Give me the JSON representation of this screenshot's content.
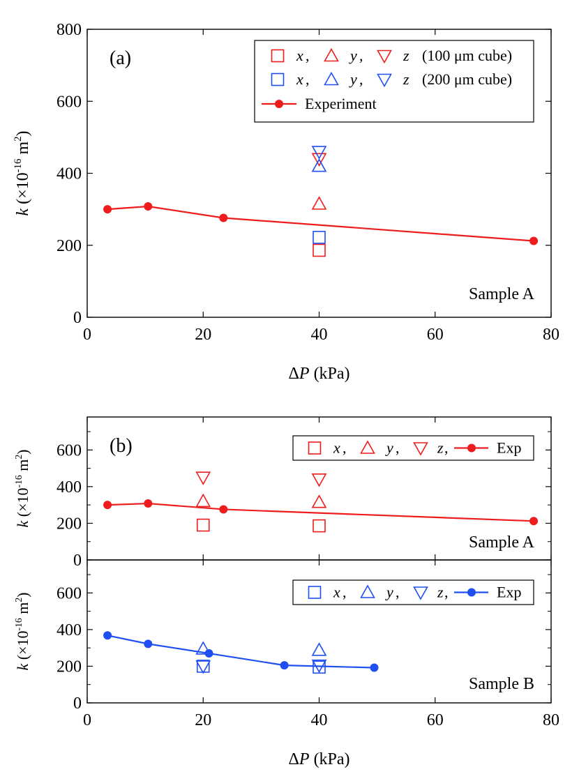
{
  "colors": {
    "red": "#ee1c1c",
    "blue": "#1f4ff0",
    "axis": "#000000"
  },
  "chart_data": [
    {
      "type": "scatter",
      "panel_label": "(a)",
      "sample_label": "Sample A",
      "xlabel": {
        "delta": "Δ",
        "var": "P",
        "unit": " (kPa)"
      },
      "ylabel": {
        "var": "k",
        "open": " (×10",
        "exp": "-16",
        "unit": " m",
        "sq": "2",
        "close": ")"
      },
      "xlim": [
        0,
        80
      ],
      "ylim": [
        0,
        800
      ],
      "xticks": [
        "0",
        "20",
        "40",
        "60",
        "80"
      ],
      "yticks": [
        "0",
        "200",
        "400",
        "600",
        "800"
      ],
      "xtick_values": [
        0,
        20,
        40,
        60,
        80
      ],
      "ytick_values": [
        0,
        200,
        400,
        600,
        800
      ],
      "legend": {
        "position": "top-right",
        "row1": {
          "x": "x",
          "y": "y",
          "z": "z",
          "label": "(100 μm cube)"
        },
        "row2": {
          "x": "x",
          "y": "y",
          "z": "z",
          "label": "(200 μm cube)"
        },
        "row3": {
          "label": "Experiment"
        }
      },
      "series": [
        {
          "marker": "square",
          "color": "red",
          "points": [
            [
              40,
              186
            ]
          ]
        },
        {
          "marker": "triangle-up",
          "color": "red",
          "points": [
            [
              40,
              315
            ]
          ]
        },
        {
          "marker": "triangle-down",
          "color": "red",
          "points": [
            [
              40,
              440
            ]
          ]
        },
        {
          "marker": "square",
          "color": "blue",
          "points": [
            [
              40,
              222
            ]
          ]
        },
        {
          "marker": "triangle-up",
          "color": "blue",
          "points": [
            [
              40,
              420
            ]
          ]
        },
        {
          "marker": "triangle-down",
          "color": "blue",
          "points": [
            [
              40,
              460
            ]
          ]
        },
        {
          "marker": "circle-line",
          "color": "red",
          "name": "Experiment",
          "points": [
            [
              3.5,
              300
            ],
            [
              10.5,
              308
            ],
            [
              23.5,
              276
            ],
            [
              77,
              212
            ]
          ]
        }
      ]
    },
    {
      "type": "scatter",
      "panel_label": "(b)",
      "sample_label": "Sample A",
      "ylabel": {
        "var": "k",
        "open": " (×10",
        "exp": "-16",
        "unit": " m",
        "sq": "2",
        "close": ")"
      },
      "xlim": [
        0,
        80
      ],
      "ylim": [
        0,
        780
      ],
      "yticks": [
        "0",
        "200",
        "400",
        "600"
      ],
      "ytick_values": [
        0,
        200,
        400,
        600
      ],
      "legend": {
        "position": "top-right",
        "x": "x",
        "y": "y",
        "z": "z",
        "label": "Exp"
      },
      "series": [
        {
          "marker": "square",
          "color": "red",
          "points": [
            [
              20,
              190
            ],
            [
              40,
              186
            ]
          ]
        },
        {
          "marker": "triangle-up",
          "color": "red",
          "points": [
            [
              20,
              320
            ],
            [
              40,
              315
            ]
          ]
        },
        {
          "marker": "triangle-down",
          "color": "red",
          "points": [
            [
              20,
              450
            ],
            [
              40,
              440
            ]
          ]
        },
        {
          "marker": "circle-line",
          "color": "red",
          "name": "Exp",
          "points": [
            [
              3.5,
              300
            ],
            [
              10.5,
              308
            ],
            [
              23.5,
              276
            ],
            [
              77,
              212
            ]
          ]
        }
      ]
    },
    {
      "type": "scatter",
      "sample_label": "Sample B",
      "xlabel": {
        "delta": "Δ",
        "var": "P",
        "unit": " (kPa)"
      },
      "ylabel": {
        "var": "k",
        "open": " (×10",
        "exp": "-16",
        "unit": " m",
        "sq": "2",
        "close": ")"
      },
      "xlim": [
        0,
        80
      ],
      "ylim": [
        0,
        780
      ],
      "xticks": [
        "0",
        "20",
        "40",
        "60",
        "80"
      ],
      "xtick_values": [
        0,
        20,
        40,
        60,
        80
      ],
      "yticks": [
        "0",
        "200",
        "400",
        "600"
      ],
      "ytick_values": [
        0,
        200,
        400,
        600
      ],
      "legend": {
        "position": "top-right",
        "x": "x",
        "y": "y",
        "z": "z",
        "label": "Exp"
      },
      "series": [
        {
          "marker": "square",
          "color": "blue",
          "points": [
            [
              20,
              200
            ],
            [
              40,
              195
            ]
          ]
        },
        {
          "marker": "triangle-up",
          "color": "blue",
          "points": [
            [
              20,
              295
            ],
            [
              40,
              288
            ]
          ]
        },
        {
          "marker": "triangle-down",
          "color": "blue",
          "points": [
            [
              20,
              200
            ],
            [
              40,
              205
            ]
          ]
        },
        {
          "marker": "circle-line",
          "color": "blue",
          "name": "Exp",
          "points": [
            [
              3.5,
              368
            ],
            [
              10.5,
              322
            ],
            [
              21,
              270
            ],
            [
              34,
              205
            ],
            [
              49.5,
              192
            ]
          ]
        }
      ]
    }
  ]
}
